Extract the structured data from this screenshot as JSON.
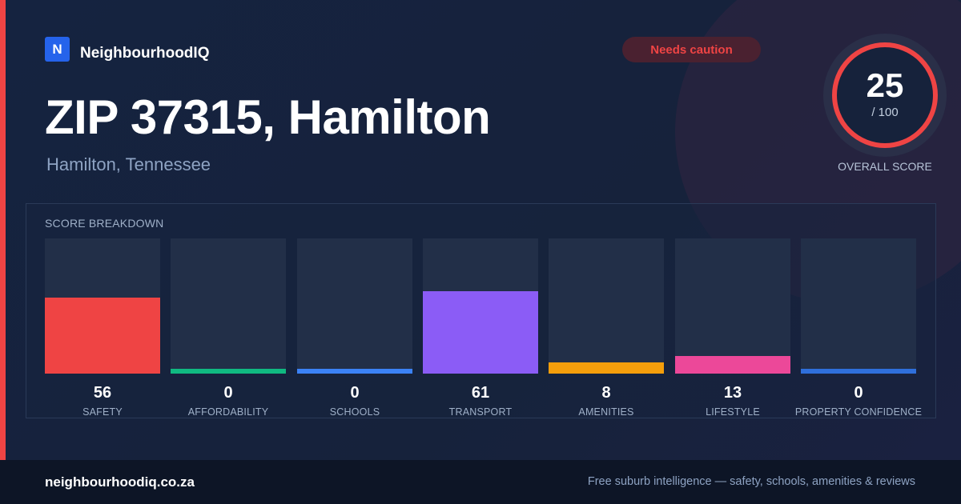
{
  "brand": {
    "logo_letter": "N",
    "name": "NeighbourhoodIQ"
  },
  "badge": {
    "text": "Needs caution"
  },
  "location": {
    "title": "ZIP 37315, Hamilton",
    "subtitle": "Hamilton, Tennessee"
  },
  "overall": {
    "score": "25",
    "max_text": "/ 100",
    "label": "OVERALL SCORE",
    "value": 25,
    "max": 100,
    "color": "#ef4444"
  },
  "breakdown": {
    "title": "SCORE BREAKDOWN"
  },
  "chart_data": {
    "type": "bar",
    "title": "SCORE BREAKDOWN",
    "categories": [
      "SAFETY",
      "AFFORDABILITY",
      "SCHOOLS",
      "TRANSPORT",
      "AMENITIES",
      "LIFESTYLE",
      "PROPERTY CONFIDENCE"
    ],
    "values": [
      56,
      0,
      0,
      61,
      8,
      13,
      0
    ],
    "colors": [
      "#ef4444",
      "#10b981",
      "#3b82f6",
      "#8b5cf6",
      "#f59e0b",
      "#ec4899",
      "#2f6fdb"
    ],
    "ylim": [
      0,
      100
    ]
  },
  "footer": {
    "url": "neighbourhoodiq.co.za",
    "tagline": "Free suburb intelligence — safety, schools, amenities & reviews"
  }
}
